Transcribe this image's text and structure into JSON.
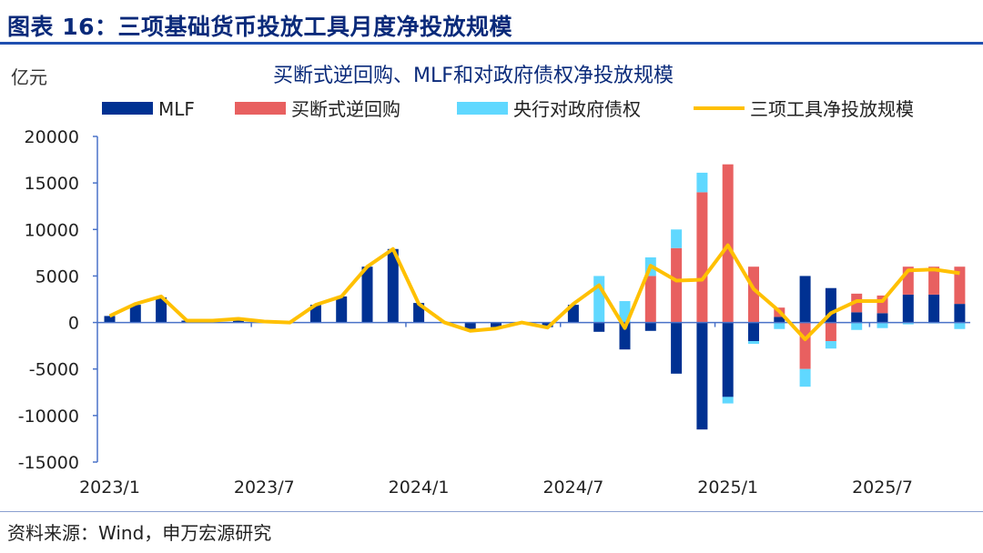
{
  "figure_title": "图表 16：三项基础货币投放工具月度净投放规模",
  "source": "资料来源：Wind，申万宏源研究",
  "colors": {
    "mlf": "#003192",
    "outright_repo": "#E86060",
    "govt_claims": "#60D8FF",
    "total": "#FFC000",
    "axis": "#4A72C8",
    "title": "#0A2A7A"
  },
  "chart_data": {
    "type": "bar",
    "stacked": true,
    "title": "买断式逆回购、MLF和对政府债权净投放规模",
    "ylabel": "亿元",
    "xlabel": "",
    "ylim": [
      -15000,
      20000
    ],
    "yticks": [
      20000,
      15000,
      10000,
      5000,
      0,
      -5000,
      -10000,
      -15000
    ],
    "xtick_labels": [
      "2023/1",
      "2023/7",
      "2024/1",
      "2024/7",
      "2025/1",
      "2025/7"
    ],
    "grid": false,
    "legend_position": "top",
    "categories": [
      "2023/1",
      "2023/2",
      "2023/3",
      "2023/4",
      "2023/5",
      "2023/6",
      "2023/7",
      "2023/8",
      "2023/9",
      "2023/10",
      "2023/11",
      "2023/12",
      "2024/1",
      "2024/2",
      "2024/3",
      "2024/4",
      "2024/5",
      "2024/6",
      "2024/7",
      "2024/8",
      "2024/9",
      "2024/10",
      "2024/11",
      "2024/12",
      "2025/1",
      "2025/2",
      "2025/3",
      "2025/4",
      "2025/5",
      "2025/6",
      "2025/7",
      "2025/8",
      "2025/9",
      "2025/10"
    ],
    "series": [
      {
        "name": "MLF",
        "type": "bar",
        "values": [
          700,
          1900,
          2700,
          200,
          200,
          300,
          0,
          0,
          1900,
          2800,
          6000,
          7900,
          2100,
          0,
          -700,
          -500,
          0,
          -500,
          1900,
          -1000,
          -2900,
          -900,
          -5500,
          -11500,
          -8000,
          -2000,
          600,
          5000,
          3700,
          1100,
          1000,
          3000,
          3000,
          2000
        ]
      },
      {
        "name": "买断式逆回购",
        "type": "bar",
        "values": [
          0,
          0,
          0,
          0,
          0,
          0,
          0,
          0,
          0,
          0,
          0,
          0,
          0,
          0,
          0,
          0,
          0,
          0,
          0,
          0,
          0,
          5000,
          8000,
          14000,
          17000,
          6000,
          1000,
          -5000,
          -2000,
          2000,
          1900,
          3000,
          3000,
          4000
        ]
      },
      {
        "name": "央行对政府债权",
        "type": "bar",
        "values": [
          0,
          0,
          0,
          0,
          0,
          0,
          0,
          0,
          0,
          0,
          0,
          0,
          0,
          0,
          0,
          0,
          0,
          0,
          0,
          5000,
          2300,
          2000,
          2000,
          2100,
          -700,
          -300,
          -700,
          -1900,
          -800,
          -800,
          -600,
          -200,
          -100,
          -700
        ]
      },
      {
        "name": "三项工具净投放规模",
        "type": "line",
        "values": [
          700,
          2000,
          2800,
          200,
          200,
          400,
          100,
          0,
          1900,
          2800,
          6000,
          7900,
          2000,
          0,
          -900,
          -650,
          0,
          -550,
          2000,
          4000,
          -600,
          6100,
          4500,
          4600,
          8300,
          3600,
          1200,
          -1800,
          1000,
          2300,
          2300,
          5600,
          5700,
          5300
        ]
      }
    ]
  }
}
